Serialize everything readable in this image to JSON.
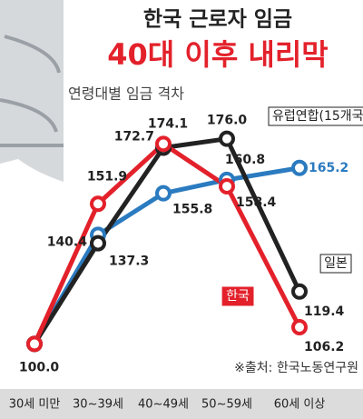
{
  "chart_data": {
    "type": "line",
    "title": "한국 근로자 임금",
    "subtitle": "40대 이후 내리막",
    "annotation": "연령대별 임금 격차",
    "source": "※출처: 한국노동연구원",
    "categories": [
      "30세 미만",
      "30~39세",
      "40~49세",
      "50~59세",
      "60세 이상"
    ],
    "ylim": [
      86,
      187
    ],
    "series": [
      {
        "name": "유럽연합(15개국)",
        "color": "#2b7bc0",
        "values": [
          100.0,
          140.4,
          155.8,
          160.8,
          165.2
        ],
        "value_labels": [
          null,
          "140.4",
          "155.8",
          "160.8",
          "165.2"
        ]
      },
      {
        "name": "일본",
        "color": "#222222",
        "values": [
          100.0,
          137.3,
          172.7,
          176.0,
          119.4
        ],
        "value_labels": [
          null,
          "137.3",
          "172.7",
          "176.0",
          "119.4"
        ]
      },
      {
        "name": "한국",
        "color": "#e3212b",
        "values": [
          100.0,
          151.9,
          174.1,
          158.4,
          106.2
        ],
        "value_labels": [
          "100.0",
          "151.9",
          "174.1",
          "158.4",
          "106.2"
        ]
      }
    ]
  }
}
